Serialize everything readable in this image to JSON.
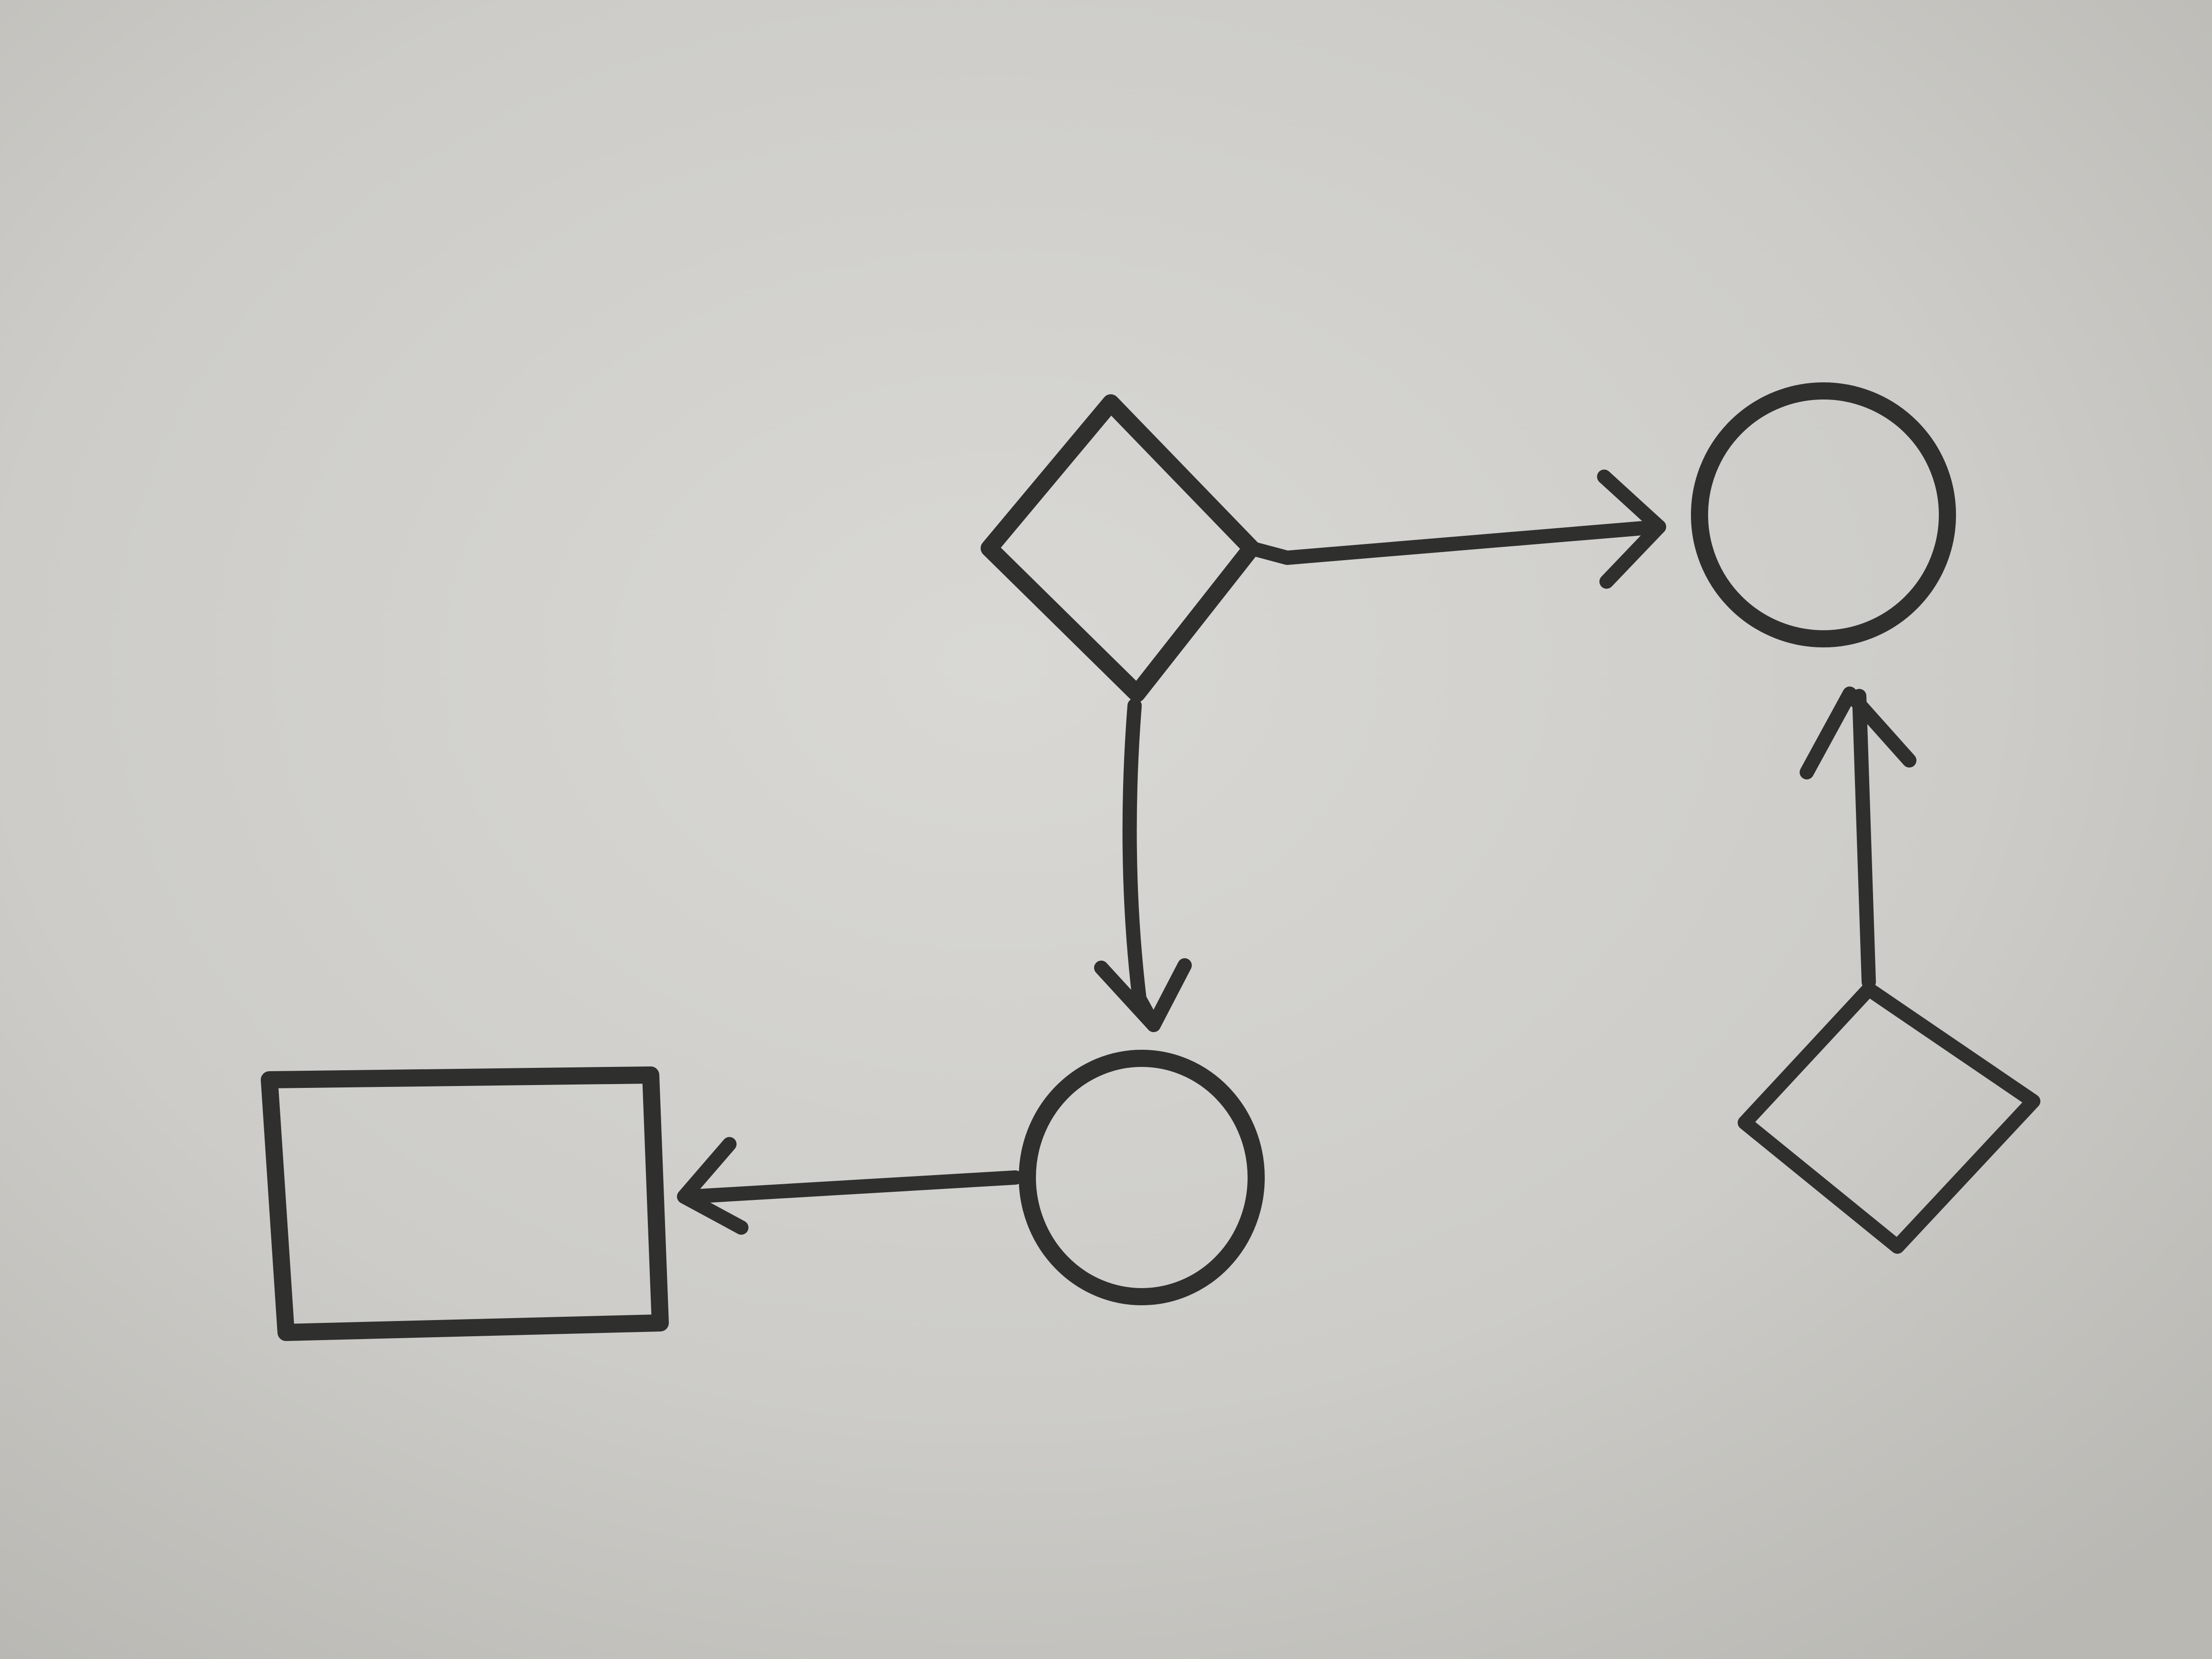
{
  "diagram": {
    "type": "hand-drawn flowchart sketch",
    "colors": {
      "paper": "#cbcac6",
      "paper_light": "#d8d7d3",
      "ink": "#2f302e"
    },
    "nodes": [
      {
        "id": "diamond-top",
        "shape": "diamond",
        "label": ""
      },
      {
        "id": "circle-top-right",
        "shape": "circle",
        "label": ""
      },
      {
        "id": "circle-bottom-middle",
        "shape": "circle",
        "label": ""
      },
      {
        "id": "rectangle-bottom-left",
        "shape": "rectangle",
        "label": ""
      },
      {
        "id": "diamond-bottom-right",
        "shape": "diamond",
        "label": ""
      }
    ],
    "edges": [
      {
        "from": "diamond-top",
        "to": "circle-top-right",
        "direction": "right"
      },
      {
        "from": "diamond-top",
        "to": "circle-bottom-middle",
        "direction": "down"
      },
      {
        "from": "circle-bottom-middle",
        "to": "rectangle-bottom-left",
        "direction": "left"
      },
      {
        "from": "diamond-bottom-right",
        "to": "circle-top-right",
        "direction": "up"
      }
    ]
  }
}
